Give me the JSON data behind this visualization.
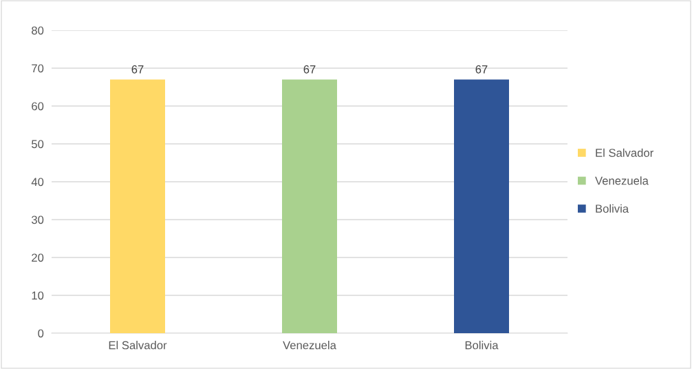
{
  "chart_data": {
    "type": "bar",
    "categories": [
      "El Salvador",
      "Venezuela",
      "Bolivia"
    ],
    "series": [
      {
        "name": "El Salvador",
        "color": "#ffd966",
        "values": [
          67,
          null,
          null
        ]
      },
      {
        "name": "Venezuela",
        "color": "#a9d18e",
        "values": [
          null,
          67,
          null
        ]
      },
      {
        "name": "Bolivia",
        "color": "#2f5597",
        "values": [
          null,
          null,
          67
        ]
      }
    ],
    "stacked": true,
    "ylim": [
      0,
      80
    ],
    "yticks": [
      0,
      10,
      20,
      30,
      40,
      50,
      60,
      70,
      80
    ],
    "grid": "y",
    "legend": "right",
    "data_labels": true
  }
}
